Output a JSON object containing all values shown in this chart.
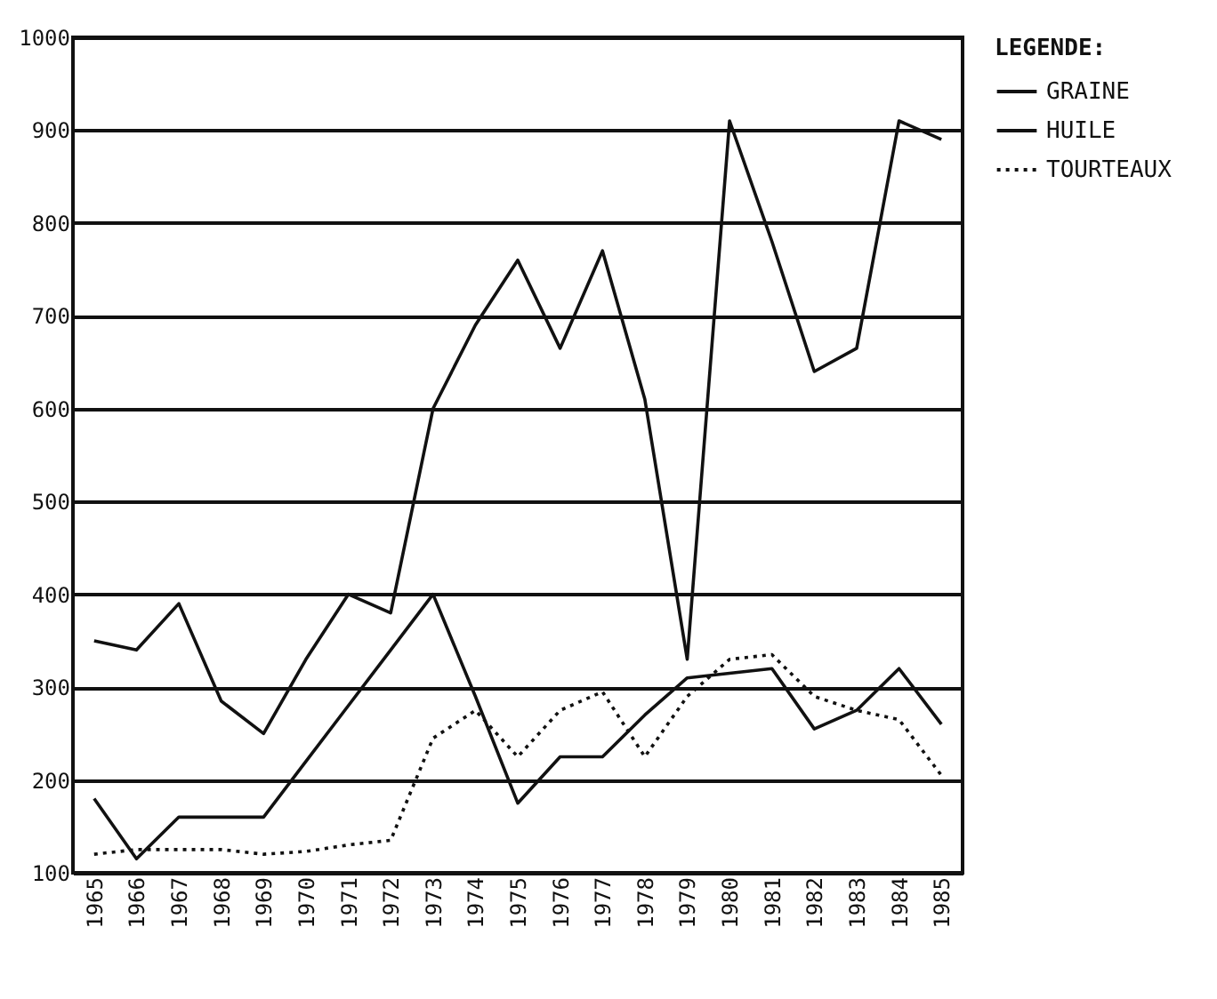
{
  "chart_data": {
    "type": "line",
    "legend_title": "LEGENDE:",
    "legend": "right",
    "grid": "y",
    "marker": "none",
    "categories": [
      "1965",
      "1966",
      "1967",
      "1968",
      "1969",
      "1970",
      "1971",
      "1972",
      "1973",
      "1974",
      "1975",
      "1976",
      "1977",
      "1978",
      "1979",
      "1980",
      "1981",
      "1982",
      "1983",
      "1984",
      "1985"
    ],
    "ylim": [
      100,
      1000
    ],
    "yticks": [
      100,
      200,
      300,
      400,
      500,
      600,
      700,
      800,
      900,
      1000
    ],
    "series": [
      {
        "name": "GRAINE",
        "color": "#111111",
        "line_style": "solid",
        "values": [
          180,
          115,
          160,
          160,
          160,
          220,
          280,
          340,
          400,
          290,
          175,
          225,
          225,
          270,
          310,
          315,
          320,
          255,
          275,
          320,
          260
        ]
      },
      {
        "name": "HUILE",
        "color": "#111111",
        "line_style": "solid",
        "values": [
          350,
          340,
          390,
          285,
          250,
          330,
          400,
          380,
          600,
          690,
          760,
          665,
          770,
          610,
          330,
          910,
          780,
          640,
          665,
          910,
          890
        ]
      },
      {
        "name": "TOURTEAUX",
        "color": "#111111",
        "line_style": "dotted",
        "values": [
          120,
          125,
          125,
          125,
          120,
          123,
          130,
          135,
          245,
          275,
          225,
          275,
          295,
          225,
          290,
          330,
          335,
          290,
          275,
          265,
          205
        ]
      }
    ]
  }
}
